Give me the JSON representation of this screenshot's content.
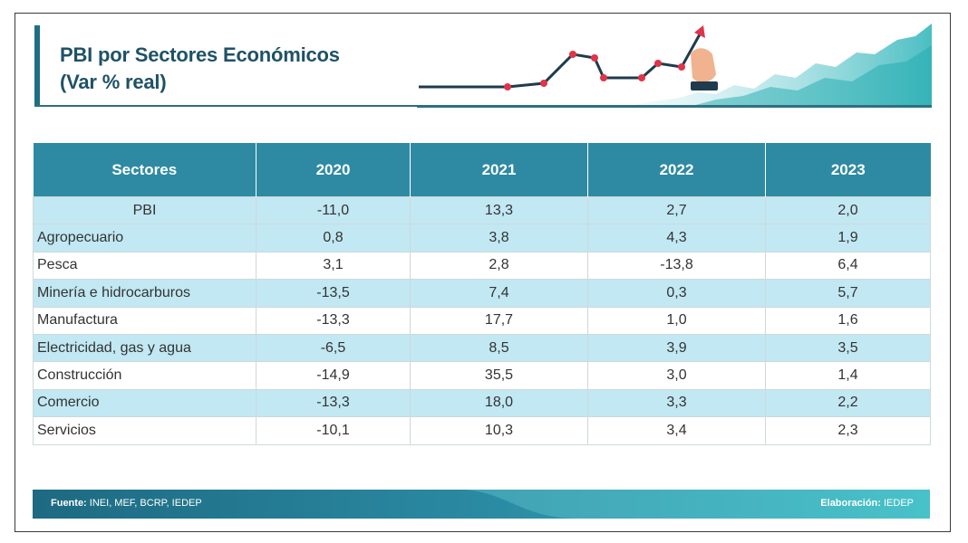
{
  "header": {
    "title_line1": "PBI por Sectores Económicos",
    "title_line2": "(Var % real)"
  },
  "colors": {
    "header_bg": "#2e8aa3",
    "shade_row": "#c1e8f3",
    "title": "#1f5266",
    "accent_red": "#e0344a"
  },
  "chart_data": {
    "type": "table",
    "columns": [
      "Sectores",
      "2020",
      "2021",
      "2022",
      "2023"
    ],
    "rows": [
      {
        "sector": "PBI",
        "values": [
          "-11,0",
          "13,3",
          "2,7",
          "2,0"
        ]
      },
      {
        "sector": "Agropecuario",
        "values": [
          "0,8",
          "3,8",
          "4,3",
          "1,9"
        ]
      },
      {
        "sector": "Pesca",
        "values": [
          "3,1",
          "2,8",
          "-13,8",
          "6,4"
        ]
      },
      {
        "sector": "Minería e hidrocarburos",
        "values": [
          "-13,5",
          "7,4",
          "0,3",
          "5,7"
        ]
      },
      {
        "sector": "Manufactura",
        "values": [
          "-13,3",
          "17,7",
          "1,0",
          "1,6"
        ]
      },
      {
        "sector": "Electricidad, gas y agua",
        "values": [
          "-6,5",
          "8,5",
          "3,9",
          "3,5"
        ]
      },
      {
        "sector": "Construcción",
        "values": [
          "-14,9",
          "35,5",
          "3,0",
          "1,4"
        ]
      },
      {
        "sector": "Comercio",
        "values": [
          "-13,3",
          "18,0",
          "3,3",
          "2,2"
        ]
      },
      {
        "sector": "Servicios",
        "values": [
          "-10,1",
          "10,3",
          "3,4",
          "2,3"
        ]
      }
    ]
  },
  "footer": {
    "source_label": "Fuente:",
    "source_text": "INEI, MEF, BCRP, IEDEP",
    "elab_label": "Elaboración:",
    "elab_text": "IEDEP"
  }
}
